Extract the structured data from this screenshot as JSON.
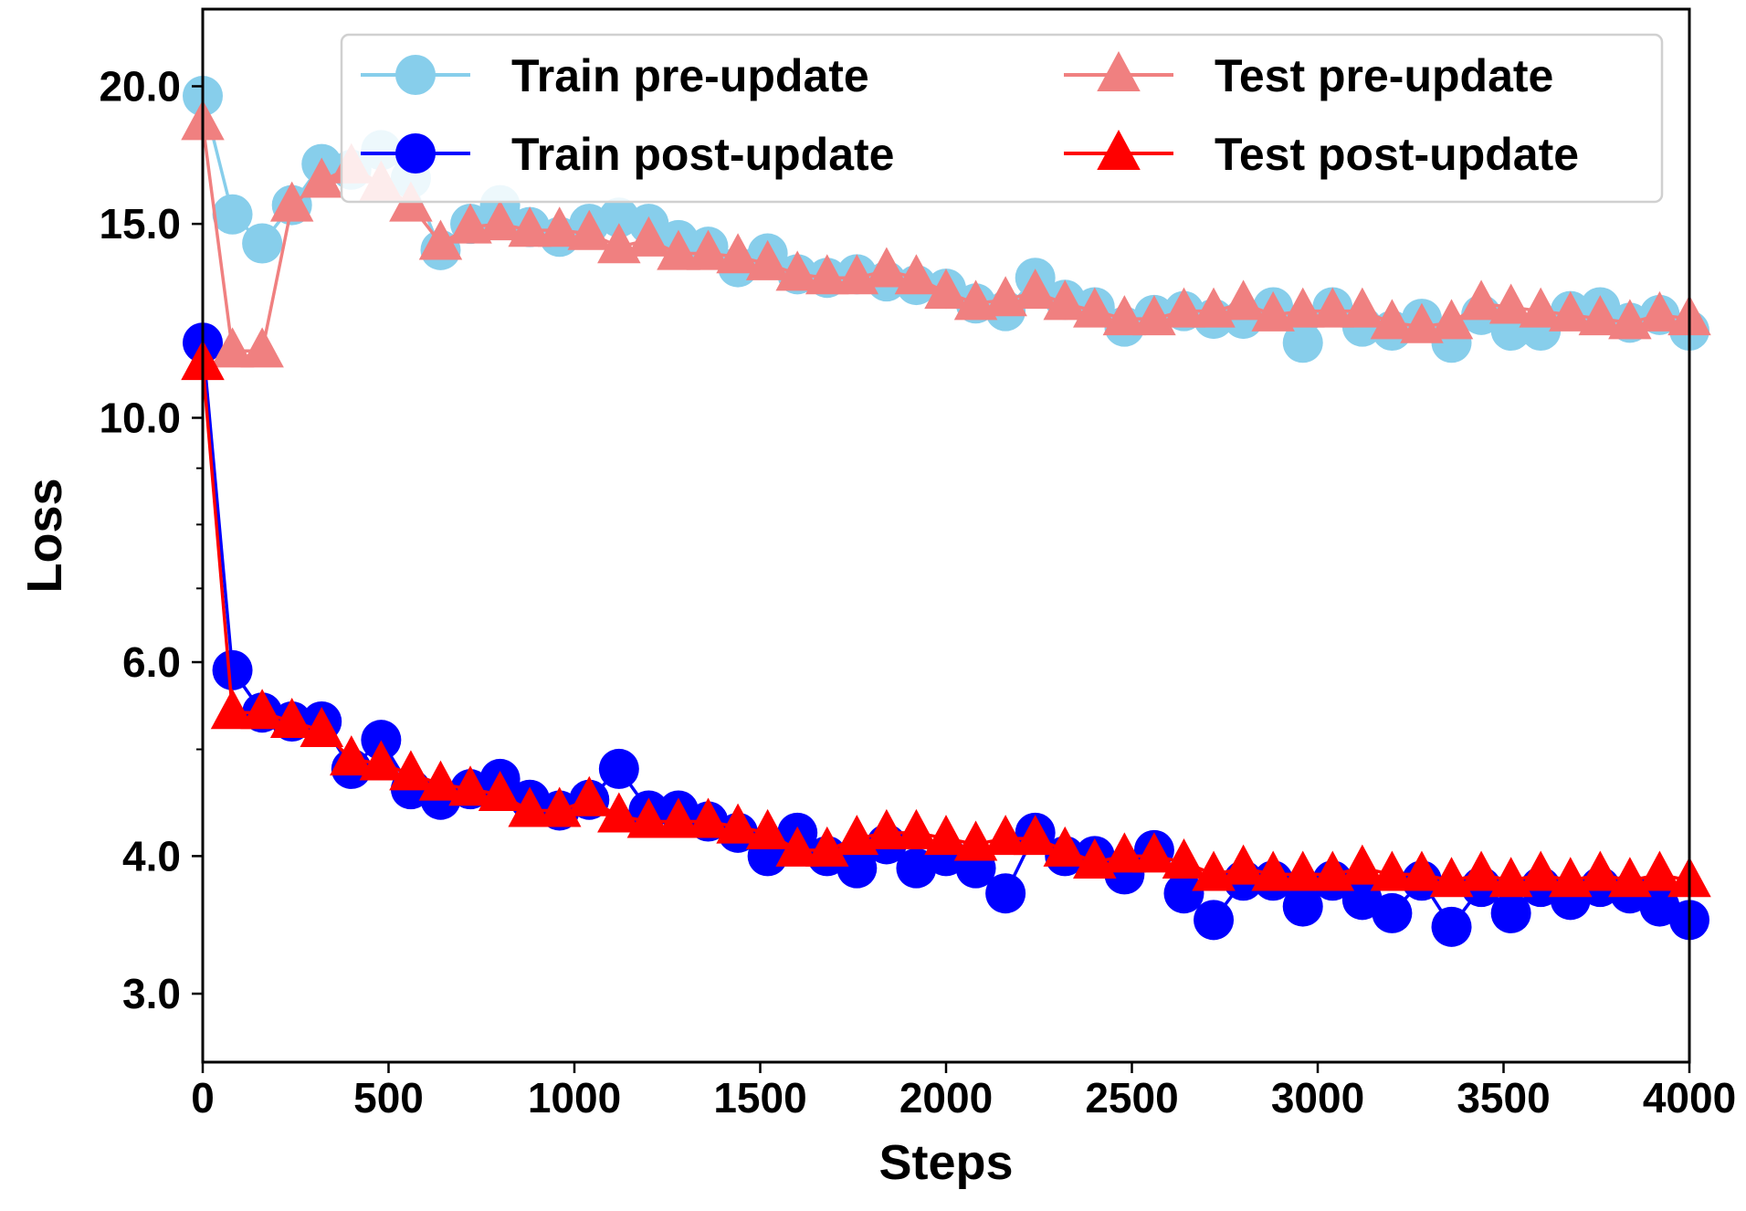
{
  "chart_data": {
    "type": "line",
    "title": "",
    "xlabel": "Steps",
    "ylabel": "Loss",
    "yscale": "log",
    "xlim": [
      0,
      4000
    ],
    "ylim": [
      2.6,
      23.5
    ],
    "xticks": [
      0,
      500,
      1000,
      1500,
      2000,
      2500,
      3000,
      3500,
      4000
    ],
    "xtick_labels": [
      "0",
      "500",
      "1000",
      "1500",
      "2000",
      "2500",
      "3000",
      "3500",
      "4000"
    ],
    "yticks": [
      3.0,
      4.0,
      6.0,
      10.0,
      15.0,
      20.0
    ],
    "ytick_labels": [
      "3.0",
      "4.0",
      "6.0",
      "10.0",
      "15.0",
      "20.0"
    ],
    "ytick_minor": [
      5.0,
      7.0,
      8.0,
      9.0
    ],
    "grid": false,
    "legend_position": "top-right",
    "x": [
      0,
      80,
      160,
      240,
      320,
      400,
      480,
      560,
      640,
      720,
      800,
      880,
      960,
      1040,
      1120,
      1200,
      1280,
      1360,
      1440,
      1520,
      1600,
      1680,
      1760,
      1840,
      1920,
      2000,
      2080,
      2160,
      2240,
      2320,
      2400,
      2480,
      2560,
      2640,
      2720,
      2800,
      2880,
      2960,
      3040,
      3120,
      3200,
      3280,
      3360,
      3440,
      3520,
      3600,
      3680,
      3760,
      3840,
      3920,
      4000
    ],
    "series": [
      {
        "name": "Train pre-update",
        "color": "#87ceeb",
        "marker": "circle",
        "values": [
          19.6,
          15.3,
          14.4,
          15.6,
          17.0,
          16.8,
          17.5,
          16.5,
          14.2,
          15.0,
          15.6,
          14.9,
          14.6,
          15.0,
          15.2,
          15.0,
          14.5,
          14.3,
          13.7,
          14.1,
          13.5,
          13.4,
          13.5,
          13.3,
          13.2,
          13.1,
          12.7,
          12.5,
          13.4,
          12.8,
          12.6,
          12.1,
          12.4,
          12.5,
          12.3,
          12.3,
          12.6,
          11.7,
          12.6,
          12.1,
          12.0,
          12.3,
          11.7,
          12.4,
          12.0,
          12.0,
          12.5,
          12.6,
          12.2,
          12.4,
          12.0
        ]
      },
      {
        "name": "Train post-update",
        "color": "#0000ff",
        "marker": "circle",
        "values": [
          11.7,
          5.9,
          5.4,
          5.3,
          5.3,
          4.8,
          5.1,
          4.6,
          4.5,
          4.6,
          4.7,
          4.5,
          4.4,
          4.5,
          4.8,
          4.4,
          4.4,
          4.3,
          4.2,
          4.0,
          4.2,
          4.0,
          3.9,
          4.1,
          3.9,
          4.0,
          3.9,
          3.7,
          4.2,
          4.0,
          4.0,
          3.85,
          4.05,
          3.7,
          3.5,
          3.8,
          3.8,
          3.6,
          3.8,
          3.65,
          3.55,
          3.8,
          3.45,
          3.75,
          3.55,
          3.75,
          3.65,
          3.75,
          3.7,
          3.6,
          3.5
        ]
      },
      {
        "name": "Test pre-update",
        "color": "#f08080",
        "marker": "triangle",
        "values": [
          18.5,
          11.5,
          11.5,
          15.6,
          16.4,
          16.9,
          16.3,
          15.6,
          14.4,
          14.9,
          15.0,
          14.8,
          14.8,
          14.7,
          14.3,
          14.5,
          14.1,
          14.1,
          14.0,
          13.8,
          13.5,
          13.4,
          13.4,
          13.6,
          13.4,
          13.0,
          12.7,
          12.8,
          13.0,
          12.7,
          12.5,
          12.3,
          12.3,
          12.5,
          12.5,
          12.7,
          12.4,
          12.5,
          12.5,
          12.5,
          12.2,
          12.1,
          12.2,
          12.7,
          12.6,
          12.5,
          12.4,
          12.3,
          12.2,
          12.4,
          12.3
        ]
      },
      {
        "name": "Test post-update",
        "color": "#ff0000",
        "marker": "triangle",
        "values": [
          11.2,
          5.4,
          5.4,
          5.3,
          5.2,
          4.9,
          4.85,
          4.75,
          4.65,
          4.6,
          4.55,
          4.4,
          4.4,
          4.5,
          4.35,
          4.3,
          4.3,
          4.3,
          4.25,
          4.2,
          4.05,
          4.05,
          4.15,
          4.2,
          4.2,
          4.15,
          4.1,
          4.15,
          4.15,
          4.05,
          3.95,
          4.0,
          4.0,
          3.95,
          3.85,
          3.9,
          3.85,
          3.85,
          3.85,
          3.9,
          3.85,
          3.85,
          3.8,
          3.85,
          3.8,
          3.85,
          3.8,
          3.85,
          3.8,
          3.85,
          3.8
        ]
      }
    ]
  }
}
